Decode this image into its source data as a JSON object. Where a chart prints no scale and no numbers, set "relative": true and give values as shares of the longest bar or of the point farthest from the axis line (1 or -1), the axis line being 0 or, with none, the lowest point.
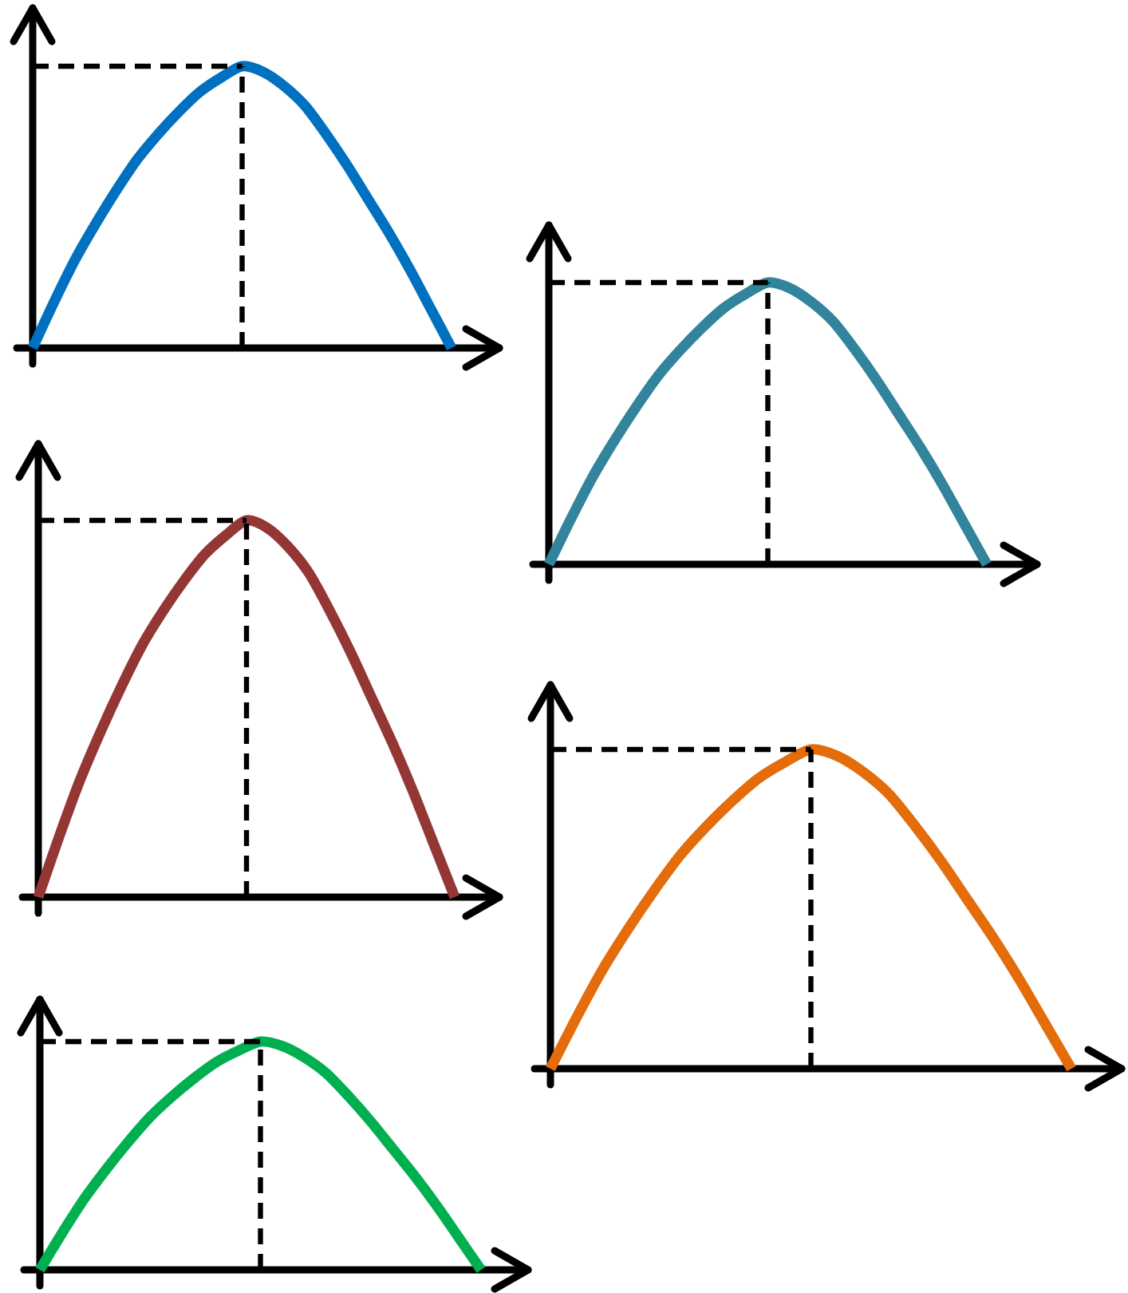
{
  "chart_data": [
    {
      "type": "line",
      "relative": true,
      "color": "#0070c0",
      "categories": [
        null,
        null,
        null,
        null,
        null,
        null,
        null,
        null,
        null,
        null,
        null,
        null,
        null,
        null,
        null,
        null,
        null,
        null,
        null,
        null,
        null
      ],
      "values": [
        0,
        0.16,
        0.31,
        0.44,
        0.56,
        0.67,
        0.76,
        0.84,
        0.91,
        0.96,
        1,
        0.98,
        0.93,
        0.86,
        0.76,
        0.65,
        0.53,
        0.41,
        0.28,
        0.14,
        0
      ],
      "ref_lines": [
        {
          "axis": "y",
          "value": 1,
          "color": "#000000",
          "line_style": "dashed"
        }
      ]
    },
    {
      "type": "line",
      "relative": true,
      "color": "#31849b",
      "categories": [
        null,
        null,
        null,
        null,
        null,
        null,
        null,
        null,
        null,
        null,
        null,
        null,
        null,
        null,
        null,
        null,
        null,
        null,
        null,
        null,
        null
      ],
      "values": [
        0,
        0.16,
        0.31,
        0.44,
        0.56,
        0.67,
        0.76,
        0.84,
        0.91,
        0.96,
        1,
        0.98,
        0.93,
        0.86,
        0.76,
        0.65,
        0.53,
        0.41,
        0.28,
        0.14,
        0
      ],
      "ref_lines": [
        {
          "axis": "y",
          "value": 1,
          "color": "#000000",
          "line_style": "dashed"
        }
      ]
    },
    {
      "type": "line",
      "relative": true,
      "color": "#943634",
      "categories": [
        null,
        null,
        null,
        null,
        null,
        null,
        null,
        null,
        null,
        null,
        null,
        null,
        null,
        null,
        null,
        null,
        null,
        null,
        null,
        null,
        null
      ],
      "values": [
        0,
        0.16,
        0.31,
        0.44,
        0.56,
        0.67,
        0.76,
        0.84,
        0.91,
        0.96,
        1,
        0.98,
        0.93,
        0.86,
        0.76,
        0.65,
        0.53,
        0.41,
        0.28,
        0.14,
        0
      ],
      "ref_lines": [
        {
          "axis": "y",
          "value": 1,
          "color": "#000000",
          "line_style": "dashed"
        }
      ]
    },
    {
      "type": "line",
      "relative": true,
      "color": "#e46c0a",
      "categories": [
        null,
        null,
        null,
        null,
        null,
        null,
        null,
        null,
        null,
        null,
        null,
        null,
        null,
        null,
        null,
        null,
        null,
        null,
        null,
        null,
        null
      ],
      "values": [
        0,
        0.16,
        0.31,
        0.44,
        0.56,
        0.67,
        0.76,
        0.84,
        0.91,
        0.96,
        1,
        0.98,
        0.93,
        0.86,
        0.76,
        0.65,
        0.53,
        0.41,
        0.28,
        0.14,
        0
      ],
      "ref_lines": [
        {
          "axis": "y",
          "value": 1,
          "color": "#000000",
          "line_style": "dashed"
        }
      ]
    },
    {
      "type": "line",
      "relative": true,
      "color": "#00b050",
      "categories": [
        null,
        null,
        null,
        null,
        null,
        null,
        null,
        null,
        null,
        null,
        null,
        null,
        null,
        null,
        null,
        null,
        null,
        null,
        null,
        null,
        null
      ],
      "values": [
        0,
        0.16,
        0.31,
        0.44,
        0.56,
        0.67,
        0.76,
        0.84,
        0.91,
        0.96,
        1,
        0.98,
        0.93,
        0.86,
        0.76,
        0.65,
        0.53,
        0.41,
        0.28,
        0.14,
        0
      ],
      "ref_lines": [
        {
          "axis": "y",
          "value": 1,
          "color": "#000000",
          "line_style": "dashed"
        }
      ]
    }
  ]
}
